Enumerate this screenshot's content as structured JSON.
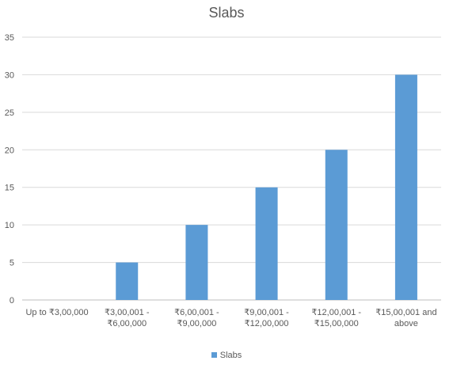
{
  "chart_data": {
    "type": "bar",
    "title": "Slabs",
    "xlabel": "",
    "ylabel": "",
    "ylim": [
      0,
      35
    ],
    "yticks": [
      0,
      5,
      10,
      15,
      20,
      25,
      30,
      35
    ],
    "grid": true,
    "legend_position": "bottom",
    "categories": [
      [
        "Up to ₹3,00,000"
      ],
      [
        "₹3,00,001 -",
        "₹6,00,000"
      ],
      [
        "₹6,00,001 -",
        "₹9,00,000"
      ],
      [
        "₹9,00,001 -",
        "₹12,00,000"
      ],
      [
        "₹12,00,001 -",
        "₹15,00,000"
      ],
      [
        "₹15,00,001 and",
        "above"
      ]
    ],
    "series": [
      {
        "name": "Slabs",
        "color": "#5b9bd5",
        "values": [
          0,
          5,
          10,
          15,
          20,
          30
        ]
      }
    ]
  },
  "colors": {
    "gridline": "#d9d9d9",
    "axis": "#bfbfbf",
    "text": "#595959"
  }
}
